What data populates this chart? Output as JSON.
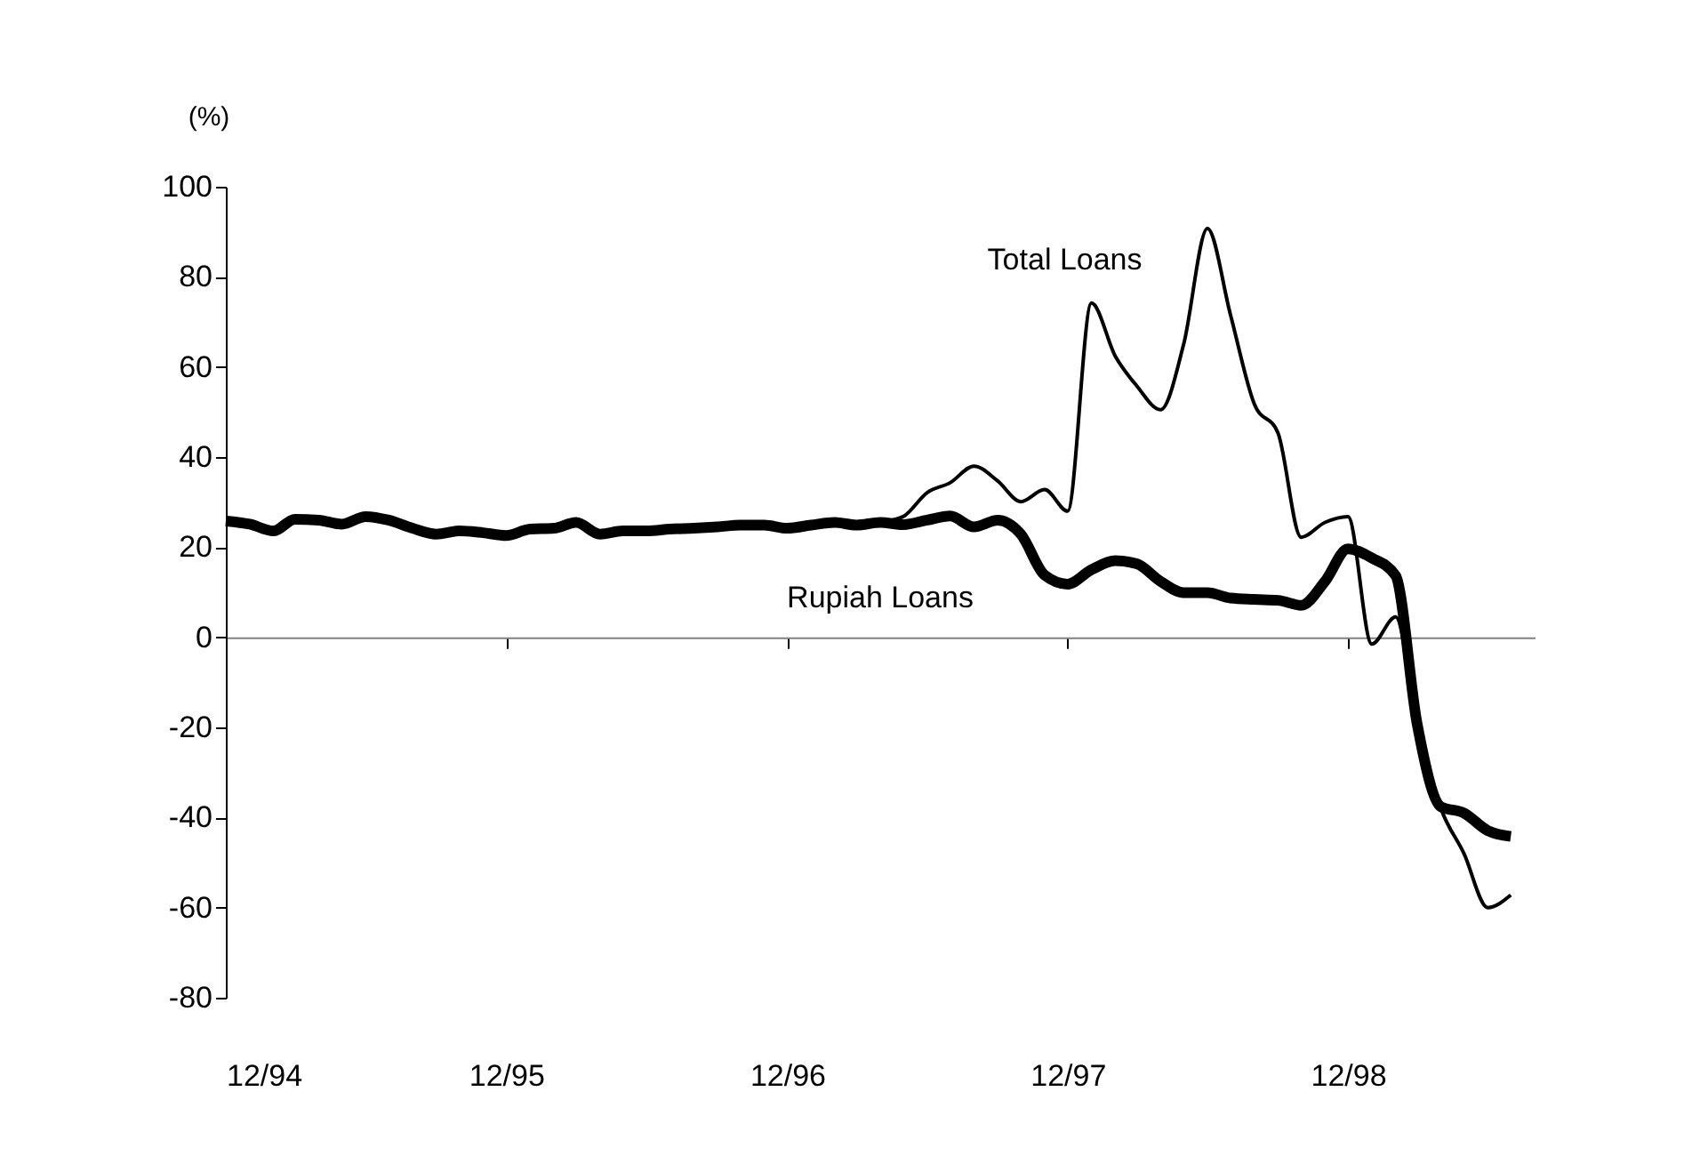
{
  "chart_data": {
    "type": "line",
    "ylabel": "(%)",
    "x": [
      "1994-12",
      "1995-01",
      "1995-02",
      "1995-03",
      "1995-04",
      "1995-05",
      "1995-06",
      "1995-07",
      "1995-08",
      "1995-09",
      "1995-10",
      "1995-11",
      "1995-12",
      "1996-01",
      "1996-02",
      "1996-03",
      "1996-04",
      "1996-05",
      "1996-06",
      "1996-07",
      "1996-08",
      "1996-09",
      "1996-10",
      "1996-11",
      "1996-12",
      "1997-01",
      "1997-02",
      "1997-03",
      "1997-04",
      "1997-05",
      "1997-06",
      "1997-07",
      "1997-08",
      "1997-09",
      "1997-10",
      "1997-11",
      "1997-12",
      "1998-01",
      "1998-02",
      "1998-03",
      "1998-04",
      "1998-05",
      "1998-06",
      "1998-07",
      "1998-08",
      "1998-09",
      "1998-10",
      "1998-11",
      "1998-12",
      "1999-01",
      "1999-02",
      "1999-03",
      "1999-04",
      "1999-05",
      "1999-06",
      "1999-07"
    ],
    "series": [
      {
        "name": "Total Loans",
        "color": "#000000",
        "values": [
          25.8,
          25.1,
          23.6,
          26.2,
          26,
          25.1,
          26.8,
          26,
          24.2,
          22.9,
          23.6,
          23.2,
          22.6,
          24,
          24.2,
          25.5,
          22.9,
          23.6,
          23.6,
          24,
          24.2,
          24.5,
          24.9,
          24.9,
          24.2,
          24.9,
          25.5,
          24.9,
          25.5,
          26.8,
          32.1,
          34.3,
          38,
          34.7,
          30.1,
          32.8,
          28,
          74.2,
          62.4,
          55.8,
          50.5,
          65,
          90.7,
          71.6,
          51.8,
          45.3,
          22.2,
          25.5,
          26.8,
          -1.5,
          4.5,
          -19,
          -38,
          -48,
          -60,
          -57.2
        ]
      },
      {
        "name": "Rupiah Loans",
        "color": "#000000",
        "values": [
          25.8,
          25.1,
          23.6,
          26.2,
          26,
          25.1,
          26.8,
          26,
          24.2,
          22.9,
          23.6,
          23.2,
          22.6,
          24,
          24.2,
          25.5,
          22.9,
          23.6,
          23.6,
          24,
          24.2,
          24.5,
          24.9,
          24.9,
          24.2,
          24.9,
          25.5,
          24.9,
          25.5,
          25,
          26,
          26.9,
          24.5,
          26,
          22.9,
          13.8,
          11.8,
          15,
          17,
          16.3,
          12.4,
          9.9,
          9.9,
          8.7,
          8.4,
          8.2,
          7.1,
          12.4,
          19.6,
          17.6,
          13.7,
          -19.2,
          -37.6,
          -39,
          -42.9,
          -44.2
        ]
      }
    ],
    "xlim": [
      "1994-12",
      "1999-08"
    ],
    "xticks": [
      {
        "value": "1994-12",
        "label": "12/94"
      },
      {
        "value": "1995-12",
        "label": "12/95"
      },
      {
        "value": "1996-12",
        "label": "12/96"
      },
      {
        "value": "1997-12",
        "label": "12/97"
      },
      {
        "value": "1998-12",
        "label": "12/98"
      }
    ],
    "ylim": [
      -80,
      100
    ],
    "yticks": [
      -80,
      -60,
      -40,
      -20,
      0,
      20,
      40,
      60,
      80,
      100
    ]
  }
}
